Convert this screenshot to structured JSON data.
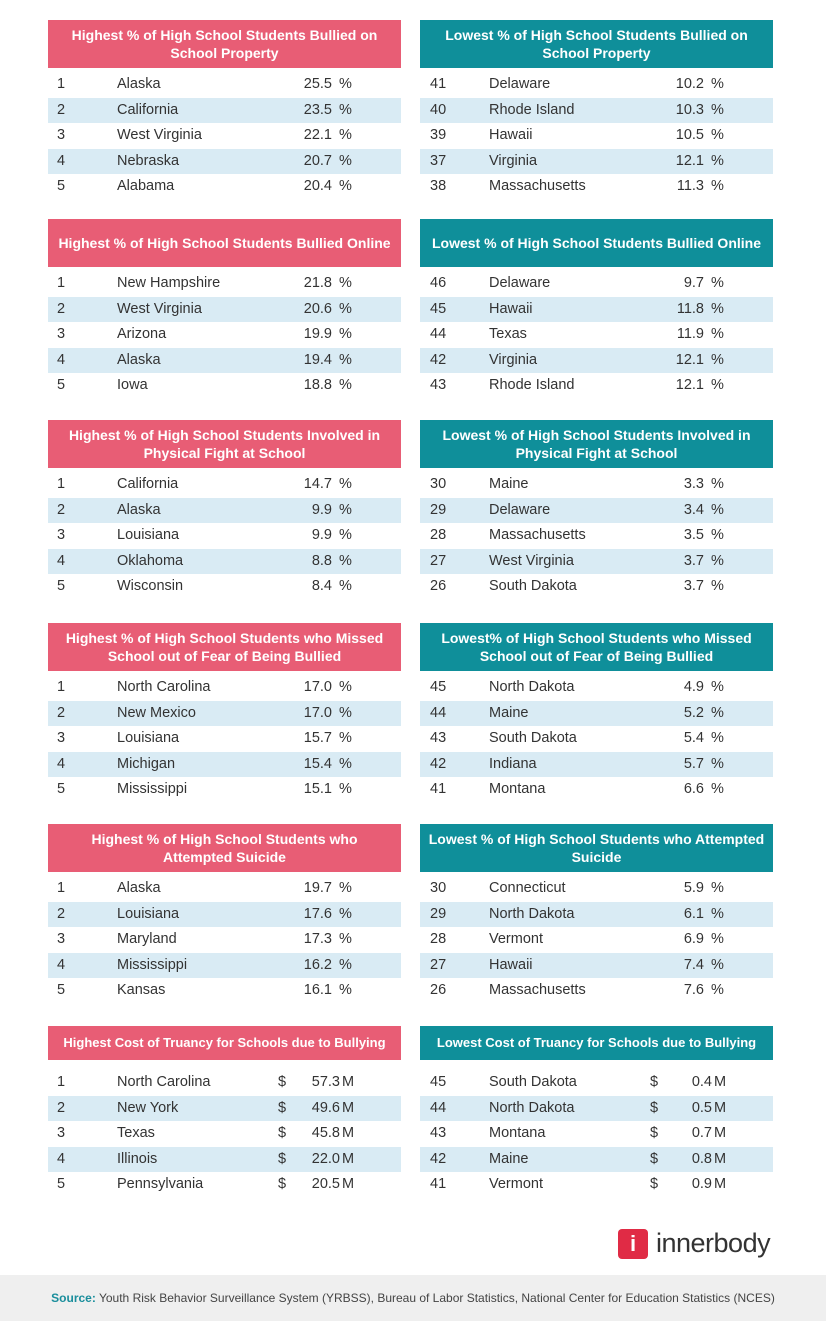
{
  "sections": [
    {
      "left": {
        "title": "Highest % of High School Students Bullied on School Property",
        "unit": "%",
        "rows": [
          [
            "1",
            "Alaska",
            "25.5"
          ],
          [
            "2",
            "California",
            "23.5"
          ],
          [
            "3",
            "West Virginia",
            "22.1"
          ],
          [
            "4",
            "Nebraska",
            "20.7"
          ],
          [
            "5",
            "Alabama",
            "20.4"
          ]
        ]
      },
      "right": {
        "title": "Lowest % of High School Students Bullied on School Property",
        "unit": "%",
        "rows": [
          [
            "41",
            "Delaware",
            "10.2"
          ],
          [
            "40",
            "Rhode Island",
            "10.3"
          ],
          [
            "39",
            "Hawaii",
            "10.5"
          ],
          [
            "37",
            "Virginia",
            "12.1"
          ],
          [
            "38",
            "Massachusetts",
            "11.3"
          ]
        ]
      }
    },
    {
      "left": {
        "title": "Highest % of High School Students Bullied Online",
        "unit": "%",
        "rows": [
          [
            "1",
            "New Hampshire",
            "21.8"
          ],
          [
            "2",
            "West Virginia",
            "20.6"
          ],
          [
            "3",
            "Arizona",
            "19.9"
          ],
          [
            "4",
            "Alaska",
            "19.4"
          ],
          [
            "5",
            "Iowa",
            "18.8"
          ]
        ]
      },
      "right": {
        "title": "Lowest % of High School Students Bullied Online",
        "unit": "%",
        "rows": [
          [
            "46",
            "Delaware",
            "9.7"
          ],
          [
            "45",
            "Hawaii",
            "11.8"
          ],
          [
            "44",
            "Texas",
            "11.9"
          ],
          [
            "42",
            "Virginia",
            "12.1"
          ],
          [
            "43",
            "Rhode Island",
            "12.1"
          ]
        ]
      }
    },
    {
      "left": {
        "title": "Highest % of High School Students Involved in Physical Fight at School",
        "unit": "%",
        "rows": [
          [
            "1",
            "California",
            "14.7"
          ],
          [
            "2",
            "Alaska",
            "9.9"
          ],
          [
            "3",
            "Louisiana",
            "9.9"
          ],
          [
            "4",
            "Oklahoma",
            "8.8"
          ],
          [
            "5",
            "Wisconsin",
            "8.4"
          ]
        ]
      },
      "right": {
        "title": "Lowest % of High School Students Involved in Physical Fight at School",
        "unit": "%",
        "rows": [
          [
            "30",
            "Maine",
            "3.3"
          ],
          [
            "29",
            "Delaware",
            "3.4"
          ],
          [
            "28",
            "Massachusetts",
            "3.5"
          ],
          [
            "27",
            "West Virginia",
            "3.7"
          ],
          [
            "26",
            "South Dakota",
            "3.7"
          ]
        ]
      }
    },
    {
      "left": {
        "title": "Highest % of High School Students who Missed School out of Fear of Being Bullied",
        "unit": "%",
        "rows": [
          [
            "1",
            "North Carolina",
            "17.0"
          ],
          [
            "2",
            "New Mexico",
            "17.0"
          ],
          [
            "3",
            "Louisiana",
            "15.7"
          ],
          [
            "4",
            "Michigan",
            "15.4"
          ],
          [
            "5",
            "Mississippi",
            "15.1"
          ]
        ]
      },
      "right": {
        "title": "Lowest% of High School Students who Missed School out of Fear of Being Bullied",
        "unit": "%",
        "rows": [
          [
            "45",
            "North Dakota",
            "4.9"
          ],
          [
            "44",
            "Maine",
            "5.2"
          ],
          [
            "43",
            "South Dakota",
            "5.4"
          ],
          [
            "42",
            "Indiana",
            "5.7"
          ],
          [
            "41",
            "Montana",
            "6.6"
          ]
        ]
      }
    },
    {
      "left": {
        "title": "Highest % of High School Students who Attempted Suicide",
        "unit": "%",
        "rows": [
          [
            "1",
            "Alaska",
            "19.7"
          ],
          [
            "2",
            "Louisiana",
            "17.6"
          ],
          [
            "3",
            "Maryland",
            "17.3"
          ],
          [
            "4",
            "Mississippi",
            "16.2"
          ],
          [
            "5",
            "Kansas",
            "16.1"
          ]
        ]
      },
      "right": {
        "title": "Lowest % of High School Students who Attempted Suicide",
        "unit": "%",
        "rows": [
          [
            "30",
            "Connecticut",
            "5.9"
          ],
          [
            "29",
            "North Dakota",
            "6.1"
          ],
          [
            "28",
            "Vermont",
            "6.9"
          ],
          [
            "27",
            "Hawaii",
            "7.4"
          ],
          [
            "26",
            "Massachusetts",
            "7.6"
          ]
        ]
      }
    },
    {
      "left": {
        "title": "Highest Cost of Truancy for Schools due to Bullying",
        "currency": "$",
        "unit": "M",
        "rows": [
          [
            "1",
            "North Carolina",
            "57.3"
          ],
          [
            "2",
            "New York",
            "49.6"
          ],
          [
            "3",
            "Texas",
            "45.8"
          ],
          [
            "4",
            "Illinois",
            "22.0"
          ],
          [
            "5",
            "Pennsylvania",
            "20.5"
          ]
        ]
      },
      "right": {
        "title": "Lowest Cost of Truancy for Schools due to Bullying",
        "currency": "$",
        "unit": "M",
        "rows": [
          [
            "45",
            "South Dakota",
            "0.4"
          ],
          [
            "44",
            "North Dakota",
            "0.5"
          ],
          [
            "43",
            "Montana",
            "0.7"
          ],
          [
            "42",
            "Maine",
            "0.8"
          ],
          [
            "41",
            "Vermont",
            "0.9"
          ]
        ]
      }
    }
  ],
  "logo": {
    "mark": "i",
    "text": "innerbody"
  },
  "footer": {
    "label": "Source:",
    "text": " Youth Risk Behavior Surveillance System (YRBSS), Bureau of Labor Statistics, National Center for Education Statistics (NCES)"
  },
  "colors": {
    "highest_header": "#e85d75",
    "lowest_header": "#0f8f9a",
    "stripe": "#d9ebf4",
    "brand": "#e02b45"
  }
}
